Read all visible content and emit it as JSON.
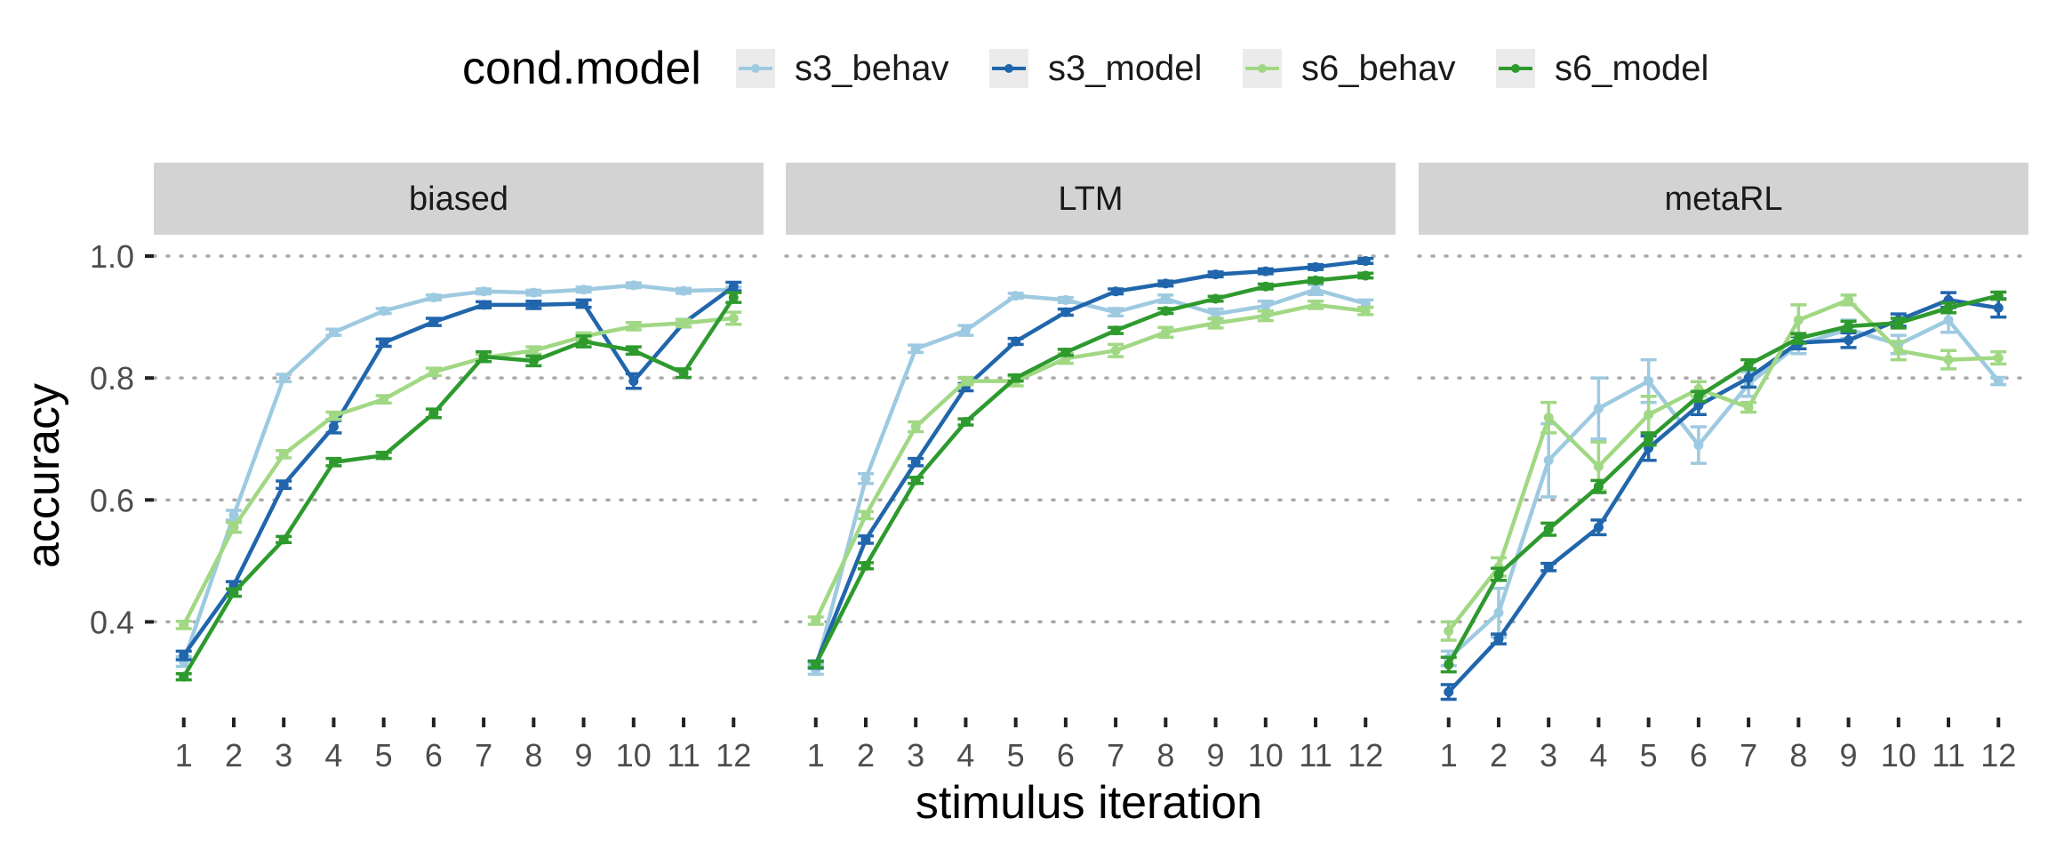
{
  "chart_data": {
    "type": "line",
    "title": "",
    "xlabel": "stimulus iteration",
    "ylabel": "accuracy",
    "x": [
      1,
      2,
      3,
      4,
      5,
      6,
      7,
      8,
      9,
      10,
      11,
      12
    ],
    "x_tick_labels": [
      "1",
      "2",
      "3",
      "4",
      "5",
      "6",
      "7",
      "8",
      "9",
      "10",
      "11",
      "12"
    ],
    "y_ticks": [
      0.4,
      0.6,
      0.8,
      1.0
    ],
    "y_tick_labels": [
      "0.4",
      "0.6",
      "0.8",
      "1.0"
    ],
    "ylim": [
      0.265,
      1.035
    ],
    "xlim": [
      0.4,
      12.6
    ],
    "grid": "dotted horizontal major gridlines",
    "legend": {
      "title": "cond.model",
      "position": "top",
      "entries": [
        "s3_behav",
        "s3_model",
        "s6_behav",
        "s6_model"
      ]
    },
    "series_colors": {
      "s3_behav": "#9ECAE1",
      "s3_model": "#2166AC",
      "s6_behav": "#A1D884",
      "s6_model": "#2E9A2E"
    },
    "panels": [
      {
        "label": "biased",
        "series": [
          {
            "name": "s3_behav",
            "values": [
              0.335,
              0.575,
              0.8,
              0.875,
              0.91,
              0.932,
              0.942,
              0.94,
              0.945,
              0.952,
              0.943,
              0.945
            ],
            "err": [
              0.008,
              0.008,
              0.006,
              0.005,
              0.004,
              0.004,
              0.004,
              0.004,
              0.004,
              0.004,
              0.004,
              0.004
            ]
          },
          {
            "name": "s3_model",
            "values": [
              0.345,
              0.46,
              0.625,
              0.72,
              0.858,
              0.892,
              0.92,
              0.92,
              0.922,
              0.795,
              0.89,
              0.95
            ],
            "err": [
              0.007,
              0.006,
              0.006,
              0.01,
              0.006,
              0.006,
              0.005,
              0.006,
              0.006,
              0.012,
              0.006,
              0.007
            ]
          },
          {
            "name": "s6_behav",
            "values": [
              0.395,
              0.555,
              0.675,
              0.738,
              0.765,
              0.81,
              0.833,
              0.845,
              0.868,
              0.885,
              0.89,
              0.898
            ],
            "err": [
              0.006,
              0.008,
              0.006,
              0.006,
              0.006,
              0.006,
              0.006,
              0.006,
              0.006,
              0.006,
              0.006,
              0.01
            ]
          },
          {
            "name": "s6_model",
            "values": [
              0.31,
              0.448,
              0.535,
              0.662,
              0.673,
              0.742,
              0.835,
              0.828,
              0.86,
              0.845,
              0.808,
              0.932
            ],
            "err": [
              0.005,
              0.006,
              0.005,
              0.006,
              0.005,
              0.007,
              0.008,
              0.008,
              0.009,
              0.006,
              0.007,
              0.008
            ]
          }
        ]
      },
      {
        "label": "LTM",
        "series": [
          {
            "name": "s3_behav",
            "values": [
              0.322,
              0.635,
              0.848,
              0.878,
              0.935,
              0.928,
              0.908,
              0.93,
              0.905,
              0.918,
              0.945,
              0.922
            ],
            "err": [
              0.008,
              0.008,
              0.006,
              0.008,
              0.004,
              0.004,
              0.006,
              0.006,
              0.008,
              0.008,
              0.008,
              0.006
            ]
          },
          {
            "name": "s3_model",
            "values": [
              0.33,
              0.535,
              0.662,
              0.785,
              0.86,
              0.908,
              0.942,
              0.955,
              0.97,
              0.975,
              0.982,
              0.992
            ],
            "err": [
              0.006,
              0.006,
              0.006,
              0.006,
              0.005,
              0.005,
              0.004,
              0.004,
              0.004,
              0.004,
              0.004,
              0.004
            ]
          },
          {
            "name": "s6_behav",
            "values": [
              0.402,
              0.575,
              0.72,
              0.795,
              0.795,
              0.832,
              0.845,
              0.875,
              0.89,
              0.902,
              0.92,
              0.91
            ],
            "err": [
              0.006,
              0.006,
              0.008,
              0.006,
              0.008,
              0.008,
              0.01,
              0.008,
              0.008,
              0.008,
              0.006,
              0.006
            ]
          },
          {
            "name": "s6_model",
            "values": [
              0.33,
              0.492,
              0.632,
              0.728,
              0.8,
              0.842,
              0.878,
              0.91,
              0.93,
              0.95,
              0.96,
              0.968
            ],
            "err": [
              0.005,
              0.005,
              0.005,
              0.005,
              0.005,
              0.005,
              0.005,
              0.004,
              0.004,
              0.004,
              0.004,
              0.004
            ]
          }
        ]
      },
      {
        "label": "metaRL",
        "series": [
          {
            "name": "s3_behav",
            "values": [
              0.34,
              0.415,
              0.665,
              0.75,
              0.795,
              0.69,
              0.79,
              0.855,
              0.88,
              0.855,
              0.895,
              0.795
            ],
            "err": [
              0.012,
              0.04,
              0.06,
              0.05,
              0.035,
              0.03,
              0.02,
              0.015,
              0.015,
              0.015,
              0.02,
              0.006
            ]
          },
          {
            "name": "s3_model",
            "values": [
              0.285,
              0.372,
              0.49,
              0.555,
              0.685,
              0.755,
              0.8,
              0.858,
              0.862,
              0.895,
              0.928,
              0.915
            ],
            "err": [
              0.012,
              0.008,
              0.006,
              0.012,
              0.02,
              0.015,
              0.015,
              0.01,
              0.012,
              0.01,
              0.012,
              0.015
            ]
          },
          {
            "name": "s6_behav",
            "values": [
              0.385,
              0.49,
              0.735,
              0.655,
              0.74,
              0.782,
              0.752,
              0.895,
              0.928,
              0.845,
              0.83,
              0.833
            ],
            "err": [
              0.015,
              0.015,
              0.025,
              0.04,
              0.03,
              0.012,
              0.008,
              0.025,
              0.008,
              0.015,
              0.015,
              0.01
            ]
          },
          {
            "name": "s6_model",
            "values": [
              0.33,
              0.478,
              0.552,
              0.622,
              0.7,
              0.77,
              0.822,
              0.865,
              0.885,
              0.89,
              0.915,
              0.935
            ],
            "err": [
              0.012,
              0.01,
              0.01,
              0.01,
              0.01,
              0.008,
              0.008,
              0.008,
              0.008,
              0.008,
              0.008,
              0.006
            ]
          }
        ]
      }
    ]
  }
}
